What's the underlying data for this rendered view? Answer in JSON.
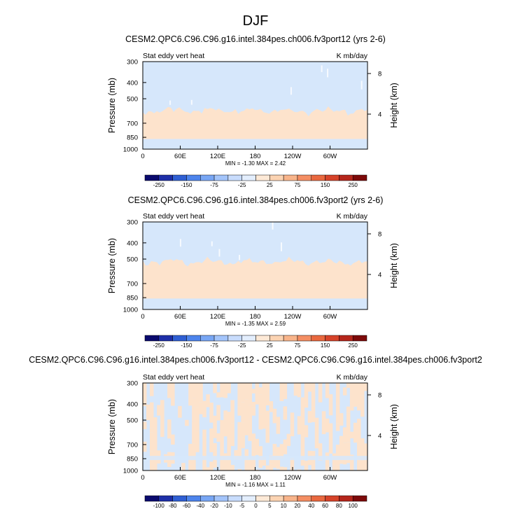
{
  "title": "DJF",
  "colors": {
    "cool": "#d6e7fb",
    "warm": "#fde3cc",
    "frame": "#000000"
  },
  "chart_data": [
    {
      "type": "heatmap",
      "title": "CESM2.QPC6.C96.C96.g16.intel.384pes.ch006.fv3port12 (yrs 2-6)",
      "left_label": "Stat eddy vert heat",
      "right_label": "K mb/day",
      "ylabel": "Pressure (mb)",
      "y2label": "Height (km)",
      "x_ticks": [
        "0",
        "60E",
        "120E",
        "180",
        "120W",
        "60W"
      ],
      "y_ticks": [
        "300",
        "400",
        "500",
        "700",
        "850",
        "1000"
      ],
      "y2_ticks": [
        "8",
        "4"
      ],
      "min_max_text": "MIN = -1.30  MAX =  2.42",
      "colorbar_labels": [
        "-250",
        "-150",
        "-75",
        "-25",
        "25",
        "75",
        "150",
        "250"
      ],
      "colorbar_colors": [
        "#0a0a6e",
        "#1e2fa8",
        "#2f5fd3",
        "#4d84ec",
        "#78a6f4",
        "#a3c4fa",
        "#c8dcfc",
        "#e3eefd",
        "#fde9d6",
        "#fbd3b2",
        "#f8b48a",
        "#f48e63",
        "#e9683f",
        "#d6432a",
        "#b5261b",
        "#7d0a0a"
      ],
      "warm_band_mb": [
        590,
        870
      ],
      "boundary_hint": "wavy warm/cool boundary near 600 mb"
    },
    {
      "type": "heatmap",
      "title": "CESM2.QPC6.C96.C96.g16.intel.384pes.ch006.fv3port2 (yrs 2-6)",
      "left_label": "Stat eddy vert heat",
      "right_label": "K mb/day",
      "ylabel": "Pressure (mb)",
      "y2label": "Height (km)",
      "x_ticks": [
        "0",
        "60E",
        "120E",
        "180",
        "120W",
        "60W"
      ],
      "y_ticks": [
        "300",
        "400",
        "500",
        "700",
        "850",
        "1000"
      ],
      "y2_ticks": [
        "8",
        "4"
      ],
      "min_max_text": "MIN = -1.35  MAX =  2.59",
      "colorbar_labels": [
        "-250",
        "-150",
        "-75",
        "-25",
        "25",
        "75",
        "150",
        "250"
      ],
      "colorbar_colors": [
        "#0a0a6e",
        "#1e2fa8",
        "#2f5fd3",
        "#4d84ec",
        "#78a6f4",
        "#a3c4fa",
        "#c8dcfc",
        "#e3eefd",
        "#fde9d6",
        "#fbd3b2",
        "#f8b48a",
        "#f48e63",
        "#e9683f",
        "#d6432a",
        "#b5261b",
        "#7d0a0a"
      ],
      "warm_band_mb": [
        520,
        860
      ],
      "boundary_hint": "wavy warm/cool boundary near 520 mb"
    },
    {
      "type": "heatmap",
      "title": "CESM2.QPC6.C96.C96.g16.intel.384pes.ch006.fv3port12 - CESM2.QPC6.C96.C96.g16.intel.384pes.ch006.fv3port2",
      "left_label": "Stat eddy vert heat",
      "right_label": "K mb/day",
      "ylabel": "Pressure (mb)",
      "y2label": "Height (km)",
      "x_ticks": [
        "0",
        "60E",
        "120E",
        "180",
        "120W",
        "60W"
      ],
      "y_ticks": [
        "300",
        "400",
        "500",
        "700",
        "850",
        "1000"
      ],
      "y2_ticks": [
        "8",
        "4"
      ],
      "min_max_text": "MIN = -1.16  MAX =  1.11",
      "colorbar_labels": [
        "-100",
        "-80",
        "-60",
        "-40",
        "-20",
        "-10",
        "-5",
        "0",
        "5",
        "10",
        "20",
        "40",
        "60",
        "80",
        "100"
      ],
      "colorbar_colors": [
        "#0a0a6e",
        "#1e2fa8",
        "#2f5fd3",
        "#4d84ec",
        "#78a6f4",
        "#a3c4fa",
        "#c8dcfc",
        "#e3eefd",
        "#fde9d6",
        "#fbd3b2",
        "#f8b48a",
        "#f48e63",
        "#e9683f",
        "#d6432a",
        "#b5261b",
        "#7d0a0a"
      ],
      "pattern": "mixed cool/warm columns (difference field)"
    }
  ]
}
